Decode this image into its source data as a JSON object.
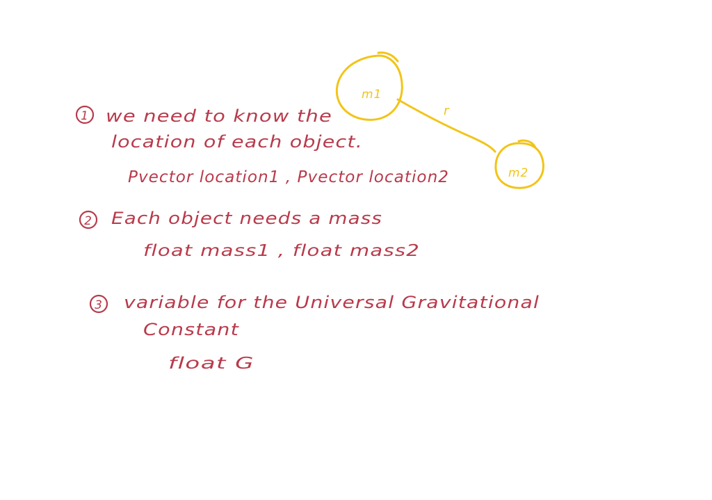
{
  "colors": {
    "ink_red": "#b83a4b",
    "ink_yellow": "#f2c418",
    "background": "#ffffff"
  },
  "notes": [
    {
      "number": "1",
      "lines": [
        "we need to know the",
        "location of each object."
      ],
      "code": "Pvector location1 , Pvector location2"
    },
    {
      "number": "2",
      "lines": [
        "Each object needs a mass"
      ],
      "code": "float mass1 , float mass2"
    },
    {
      "number": "3",
      "lines": [
        "variable for the Universal Gravitational",
        "Constant"
      ],
      "code": "float G"
    }
  ],
  "diagram": {
    "mass1_label": "m1",
    "mass2_label": "m2",
    "distance_label": "r"
  }
}
